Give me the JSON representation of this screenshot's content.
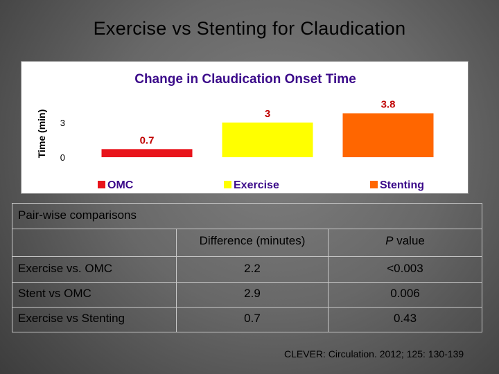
{
  "slide": {
    "title": "Exercise vs Stenting for Claudication"
  },
  "chart_data": {
    "type": "bar",
    "title": "Change in Claudication Onset Time",
    "xlabel": "",
    "ylabel": "Time (min)",
    "yticks": [
      "0",
      "3"
    ],
    "ylim": [
      0,
      4
    ],
    "grid": false,
    "legend_position": "bottom",
    "categories": [
      "OMC",
      "Exercise",
      "Stenting"
    ],
    "values": [
      0.7,
      3,
      3.8
    ],
    "data_labels": [
      "0.7",
      "3",
      "3.8"
    ],
    "colors": [
      "#e8141b",
      "#ffff00",
      "#ff6600"
    ],
    "label_colors": [
      "#c00000",
      "#c00000",
      "#c00000"
    ]
  },
  "table": {
    "caption": "Pair-wise comparisons",
    "header": {
      "difference": "Difference (minutes)",
      "p_value": "P value",
      "p_letter": "P",
      "p_suffix": " value"
    },
    "rows": [
      {
        "label": "Exercise vs. OMC",
        "difference": "2.2",
        "p": "<0.003"
      },
      {
        "label": "Stent vs OMC",
        "difference": "2.9",
        "p": "0.006"
      },
      {
        "label": "Exercise vs Stenting",
        "difference": "0.7",
        "p": "0.43"
      }
    ]
  },
  "citation": "CLEVER: Circulation. 2012; 125: 130-139"
}
